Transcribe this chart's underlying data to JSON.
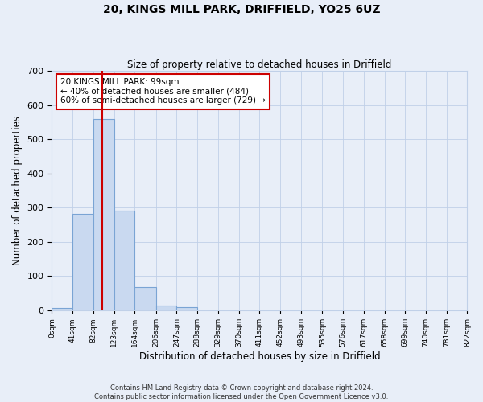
{
  "title1": "20, KINGS MILL PARK, DRIFFIELD, YO25 6UZ",
  "title2": "Size of property relative to detached houses in Driffield",
  "xlabel": "Distribution of detached houses by size in Driffield",
  "ylabel": "Number of detached properties",
  "bar_values": [
    8,
    282,
    560,
    291,
    68,
    15,
    10,
    0,
    0,
    0,
    0,
    0,
    0,
    0,
    0,
    0,
    0,
    0,
    0,
    0
  ],
  "bin_edges": [
    0,
    41,
    82,
    123,
    164,
    206,
    247,
    288,
    329,
    370,
    411,
    452,
    493,
    535,
    576,
    617,
    658,
    699,
    740,
    781,
    822
  ],
  "tick_labels": [
    "0sqm",
    "41sqm",
    "82sqm",
    "123sqm",
    "164sqm",
    "206sqm",
    "247sqm",
    "288sqm",
    "329sqm",
    "370sqm",
    "411sqm",
    "452sqm",
    "493sqm",
    "535sqm",
    "576sqm",
    "617sqm",
    "658sqm",
    "699sqm",
    "740sqm",
    "781sqm",
    "822sqm"
  ],
  "bar_color": "#c9d9f0",
  "bar_edge_color": "#7aa4d4",
  "property_line_x": 99,
  "annotation_line1": "20 KINGS MILL PARK: 99sqm",
  "annotation_line2": "← 40% of detached houses are smaller (484)",
  "annotation_line3": "60% of semi-detached houses are larger (729) →",
  "annotation_box_facecolor": "#ffffff",
  "annotation_border_color": "#cc0000",
  "vline_color": "#cc0000",
  "ylim": [
    0,
    700
  ],
  "yticks": [
    0,
    100,
    200,
    300,
    400,
    500,
    600,
    700
  ],
  "grid_color": "#c0d0e8",
  "background_color": "#e8eef8",
  "footer1": "Contains HM Land Registry data © Crown copyright and database right 2024.",
  "footer2": "Contains public sector information licensed under the Open Government Licence v3.0."
}
